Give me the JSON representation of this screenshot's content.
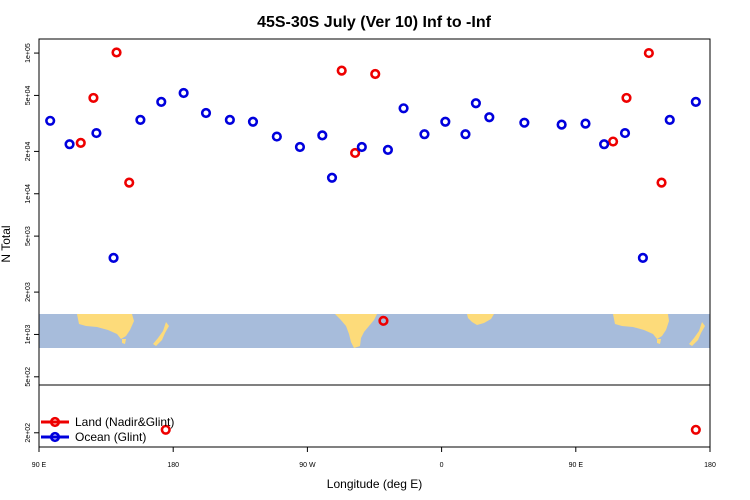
{
  "chart_data": {
    "type": "scatter",
    "title": "45S-30S July (Ver 10)   Inf to -Inf",
    "xlabel": "Longitude (deg E)",
    "ylabel": "N Total",
    "xlim": [
      90,
      540
    ],
    "ylim_log10": [
      2.2,
      5.1
    ],
    "x_ticks": [
      {
        "value": 90,
        "label": "90 E"
      },
      {
        "value": 180,
        "label": "180"
      },
      {
        "value": 270,
        "label": "90 W"
      },
      {
        "value": 360,
        "label": "0"
      },
      {
        "value": 450,
        "label": "90 E"
      },
      {
        "value": 540,
        "label": "180"
      }
    ],
    "y_ticks": [
      {
        "value": 200,
        "label": "2e+02"
      },
      {
        "value": 500,
        "label": "5e+02"
      },
      {
        "value": 1000,
        "label": "1e+03"
      },
      {
        "value": 2000,
        "label": "2e+03"
      },
      {
        "value": 5000,
        "label": "5e+03"
      },
      {
        "value": 10000,
        "label": "1e+04"
      },
      {
        "value": 20000,
        "label": "2e+04"
      },
      {
        "value": 50000,
        "label": "5e+04"
      },
      {
        "value": 100000,
        "label": "1e+05"
      }
    ],
    "legend": {
      "placement": "bottom-left"
    },
    "colors": {
      "land": "#ee0000",
      "ocean": "#0000dd",
      "map_ocean": "#a7bcdb",
      "map_land": "#fddb7a"
    },
    "series": [
      {
        "name": "Land (Nadir&Glint)",
        "color": "#ee0000",
        "points": [
          {
            "x": 118,
            "y": 23000
          },
          {
            "x": 126.5,
            "y": 48000
          },
          {
            "x": 142,
            "y": 101000
          },
          {
            "x": 150.5,
            "y": 12000
          },
          {
            "x": 175,
            "y": 210
          },
          {
            "x": 293,
            "y": 75000
          },
          {
            "x": 302,
            "y": 19500
          },
          {
            "x": 315.5,
            "y": 71000
          },
          {
            "x": 321,
            "y": 1250
          },
          {
            "x": 475,
            "y": 23500
          },
          {
            "x": 484,
            "y": 48000
          },
          {
            "x": 499,
            "y": 100000
          },
          {
            "x": 507.5,
            "y": 12000
          },
          {
            "x": 530.5,
            "y": 210
          }
        ]
      },
      {
        "name": "Ocean (Glint)",
        "color": "#0000dd",
        "points": [
          {
            "x": 97.5,
            "y": 33000
          },
          {
            "x": 110.5,
            "y": 22500
          },
          {
            "x": 128.5,
            "y": 27000
          },
          {
            "x": 140,
            "y": 3500
          },
          {
            "x": 158,
            "y": 33500
          },
          {
            "x": 172,
            "y": 45000
          },
          {
            "x": 187,
            "y": 52000
          },
          {
            "x": 202,
            "y": 37500
          },
          {
            "x": 218,
            "y": 33500
          },
          {
            "x": 233.5,
            "y": 32500
          },
          {
            "x": 249.5,
            "y": 25500
          },
          {
            "x": 265,
            "y": 21500
          },
          {
            "x": 280,
            "y": 26000
          },
          {
            "x": 286.5,
            "y": 13000
          },
          {
            "x": 306.5,
            "y": 21500
          },
          {
            "x": 324,
            "y": 20500
          },
          {
            "x": 334.5,
            "y": 40500
          },
          {
            "x": 348.5,
            "y": 26500
          },
          {
            "x": 362.5,
            "y": 32500
          },
          {
            "x": 376,
            "y": 26500
          },
          {
            "x": 383,
            "y": 44000
          },
          {
            "x": 392,
            "y": 35000
          },
          {
            "x": 415.5,
            "y": 32000
          },
          {
            "x": 440.5,
            "y": 31000
          },
          {
            "x": 456.5,
            "y": 31500
          },
          {
            "x": 469,
            "y": 22500
          },
          {
            "x": 483,
            "y": 27000
          },
          {
            "x": 495,
            "y": 3500
          },
          {
            "x": 513,
            "y": 33500
          },
          {
            "x": 530.5,
            "y": 45000
          }
        ]
      }
    ]
  }
}
